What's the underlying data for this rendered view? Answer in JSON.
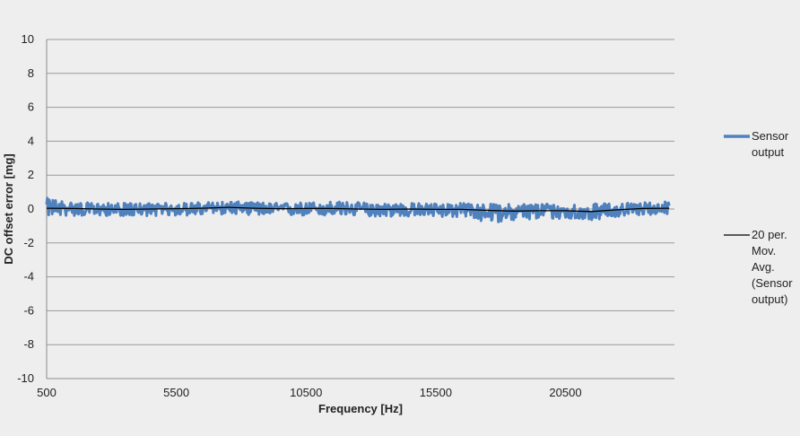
{
  "chart_data": {
    "type": "line",
    "title": "",
    "xlabel": "Frequency [Hz]",
    "ylabel": "DC offset error [mg]",
    "xlim": [
      500,
      24700
    ],
    "ylim": [
      -10,
      10
    ],
    "x_ticks": [
      500,
      5500,
      10500,
      15500,
      20500
    ],
    "x_tick_labels": [
      "500",
      "5500",
      "10500",
      "15500",
      "20500"
    ],
    "y_ticks": [
      10,
      8,
      6,
      4,
      2,
      0,
      -2,
      -4,
      -6,
      -8,
      -10
    ],
    "y_tick_labels": [
      "10",
      "8",
      "6",
      "4",
      "2",
      "0",
      "-2",
      "-4",
      "-6",
      "-8",
      "-10"
    ],
    "grid": "horizontal",
    "legend_position": "right",
    "series": [
      {
        "name": "Sensor output",
        "color": "#4f81bd",
        "x": [
          500,
          1500,
          2500,
          3500,
          4500,
          5500,
          6500,
          7500,
          8500,
          9500,
          10500,
          11500,
          12500,
          13500,
          14500,
          15500,
          16500,
          17500,
          18500,
          19500,
          20500,
          21500,
          22500,
          23500,
          24500
        ],
        "y": [
          0.1,
          0.05,
          0.0,
          -0.05,
          0.0,
          0.0,
          0.05,
          0.15,
          0.05,
          0.0,
          0.05,
          0.05,
          0.0,
          -0.05,
          0.0,
          -0.05,
          0.0,
          -0.1,
          -0.15,
          -0.1,
          -0.15,
          -0.2,
          -0.05,
          0.05,
          0.1
        ],
        "band_min": [
          -0.4,
          -0.4,
          -0.4,
          -0.4,
          -0.4,
          -0.4,
          -0.35,
          -0.3,
          -0.35,
          -0.4,
          -0.4,
          -0.4,
          -0.4,
          -0.45,
          -0.45,
          -0.45,
          -0.5,
          -0.8,
          -0.7,
          -0.6,
          -0.6,
          -0.65,
          -0.45,
          -0.35,
          -0.3
        ],
        "band_max": [
          0.65,
          0.4,
          0.35,
          0.35,
          0.35,
          0.35,
          0.4,
          0.45,
          0.4,
          0.35,
          0.4,
          0.45,
          0.4,
          0.35,
          0.35,
          0.35,
          0.35,
          0.3,
          0.3,
          0.35,
          0.3,
          0.3,
          0.35,
          0.4,
          0.45
        ]
      },
      {
        "name": "20 per. Mov. Avg. (Sensor output)",
        "color": "#000000",
        "x": [
          500,
          1500,
          2500,
          3500,
          4500,
          5500,
          6500,
          7500,
          8500,
          9500,
          10500,
          11500,
          12500,
          13500,
          14500,
          15500,
          16500,
          17500,
          18500,
          19500,
          20500,
          21500,
          22500,
          23500,
          24500
        ],
        "y": [
          0.05,
          0.03,
          0.0,
          -0.02,
          0.0,
          0.02,
          0.05,
          0.1,
          0.05,
          0.02,
          0.03,
          0.03,
          0.0,
          -0.02,
          0.0,
          -0.02,
          -0.02,
          -0.08,
          -0.12,
          -0.1,
          -0.1,
          -0.15,
          -0.05,
          0.03,
          0.05
        ]
      }
    ],
    "legend": [
      {
        "lines": [
          "Sensor",
          "output"
        ]
      },
      {
        "lines": [
          "20 per.",
          "Mov.",
          "Avg.",
          "(Sensor",
          "output)"
        ]
      }
    ]
  }
}
